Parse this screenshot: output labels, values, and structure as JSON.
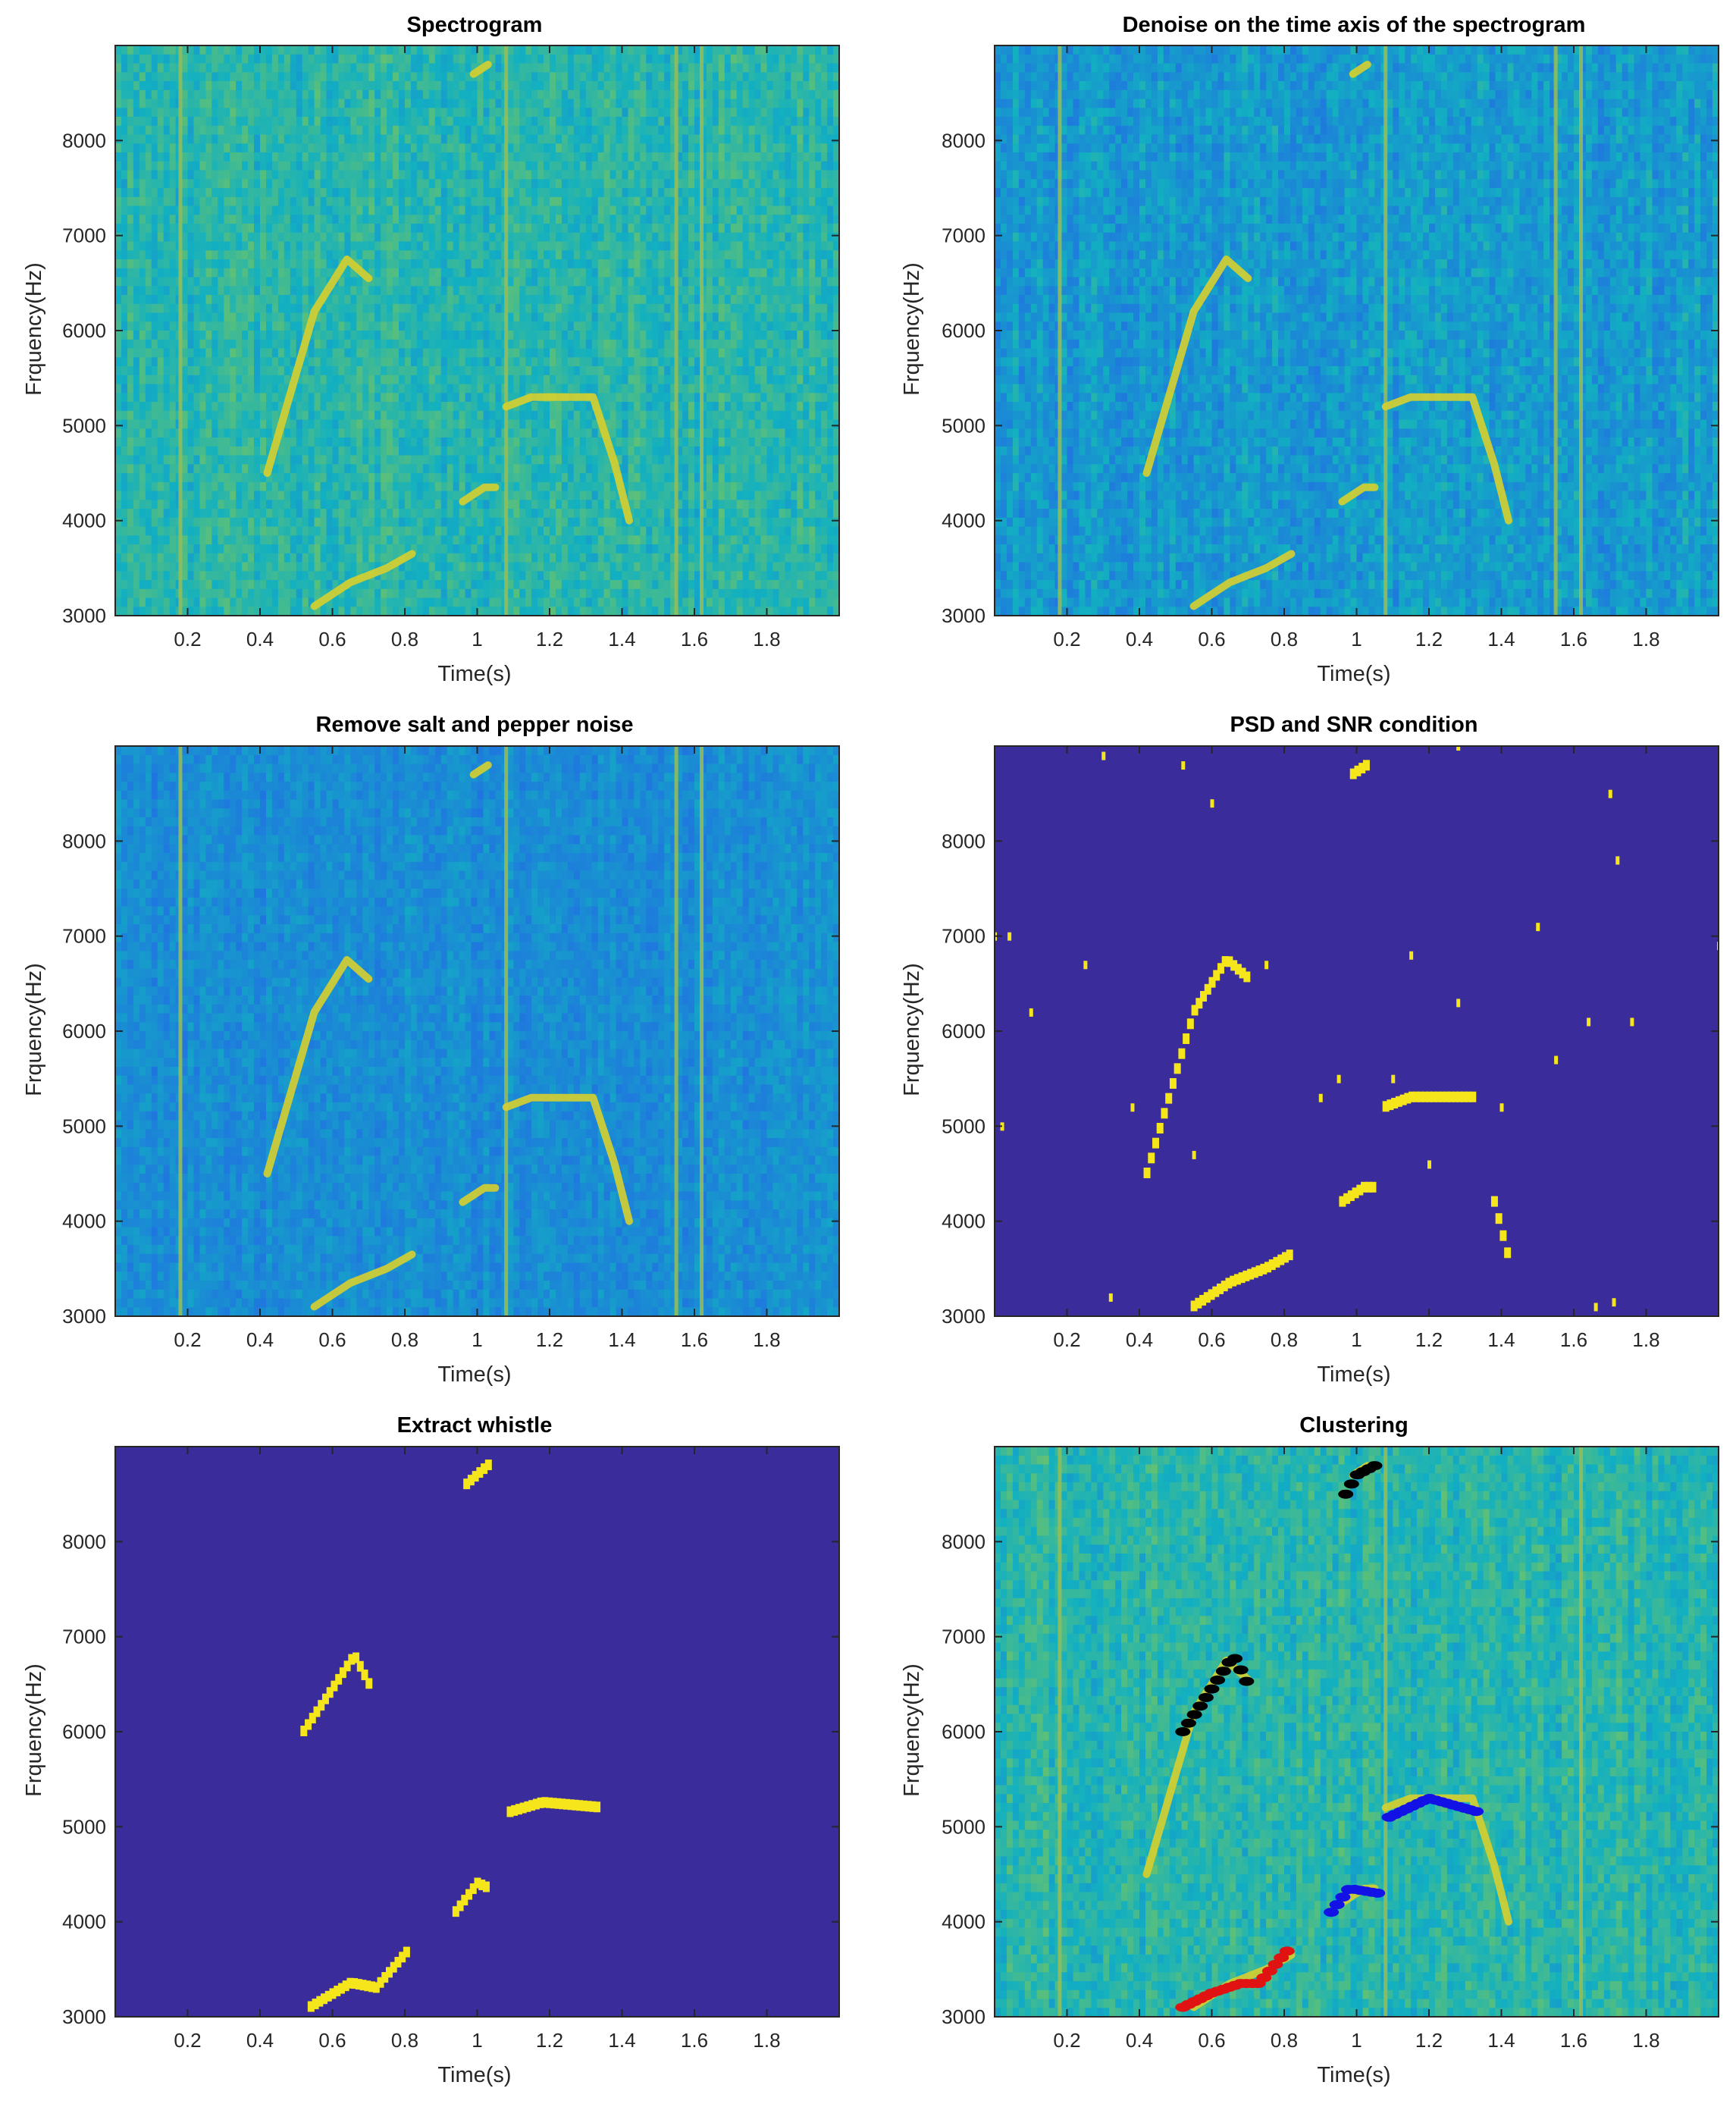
{
  "chart_data": [
    {
      "type": "heatmap",
      "title": "Spectrogram",
      "xlabel": "Time(s)",
      "ylabel": "Frquency(Hz)",
      "xlim": [
        0,
        2.0
      ],
      "ylim": [
        3000,
        9000
      ],
      "xticks": [
        "0.2",
        "0.4",
        "0.6",
        "0.8",
        "1",
        "1.2",
        "1.4",
        "1.6",
        "1.8"
      ],
      "yticks": [
        "3000",
        "4000",
        "5000",
        "6000",
        "7000",
        "8000"
      ],
      "background": "noisy",
      "colormap": "parula",
      "whistles": [
        {
          "t": [
            0.42,
            0.55,
            0.64,
            0.7
          ],
          "f": [
            4500,
            6200,
            6750,
            6550
          ]
        },
        {
          "t": [
            0.55,
            0.65,
            0.75,
            0.82
          ],
          "f": [
            3100,
            3350,
            3500,
            3650
          ]
        },
        {
          "t": [
            0.96,
            1.02,
            1.05
          ],
          "f": [
            4200,
            4350,
            4350
          ]
        },
        {
          "t": [
            1.08,
            1.15,
            1.32,
            1.38,
            1.42
          ],
          "f": [
            5200,
            5300,
            5300,
            4600,
            4000
          ]
        },
        {
          "t": [
            0.99,
            1.03
          ],
          "f": [
            8700,
            8800
          ]
        }
      ],
      "vertical_lines": [
        0.18,
        1.08,
        1.55,
        1.62
      ]
    },
    {
      "type": "heatmap",
      "title": "Denoise on the time axis of the spectrogram",
      "xlabel": "Time(s)",
      "ylabel": "Frquency(Hz)",
      "xlim": [
        0,
        2.0
      ],
      "ylim": [
        3000,
        9000
      ],
      "xticks": [
        "0.2",
        "0.4",
        "0.6",
        "0.8",
        "1",
        "1.2",
        "1.4",
        "1.6",
        "1.8"
      ],
      "yticks": [
        "3000",
        "4000",
        "5000",
        "6000",
        "7000",
        "8000"
      ],
      "background": "denoised",
      "colormap": "parula",
      "whistles": [
        {
          "t": [
            0.42,
            0.55,
            0.64,
            0.7
          ],
          "f": [
            4500,
            6200,
            6750,
            6550
          ]
        },
        {
          "t": [
            0.55,
            0.65,
            0.75,
            0.82
          ],
          "f": [
            3100,
            3350,
            3500,
            3650
          ]
        },
        {
          "t": [
            0.96,
            1.02,
            1.05
          ],
          "f": [
            4200,
            4350,
            4350
          ]
        },
        {
          "t": [
            1.08,
            1.15,
            1.32,
            1.38,
            1.42
          ],
          "f": [
            5200,
            5300,
            5300,
            4600,
            4000
          ]
        },
        {
          "t": [
            0.99,
            1.03
          ],
          "f": [
            8700,
            8800
          ]
        }
      ],
      "vertical_lines": [
        0.18,
        1.08,
        1.55,
        1.62
      ]
    },
    {
      "type": "heatmap",
      "title": "Remove salt and pepper noise",
      "xlabel": "Time(s)",
      "ylabel": "Frquency(Hz)",
      "xlim": [
        0,
        2.0
      ],
      "ylim": [
        3000,
        9000
      ],
      "xticks": [
        "0.2",
        "0.4",
        "0.6",
        "0.8",
        "1",
        "1.2",
        "1.4",
        "1.6",
        "1.8"
      ],
      "yticks": [
        "3000",
        "4000",
        "5000",
        "6000",
        "7000",
        "8000"
      ],
      "background": "smoothed",
      "colormap": "parula",
      "whistles": [
        {
          "t": [
            0.42,
            0.55,
            0.64,
            0.7
          ],
          "f": [
            4500,
            6200,
            6750,
            6550
          ]
        },
        {
          "t": [
            0.55,
            0.65,
            0.75,
            0.82
          ],
          "f": [
            3100,
            3350,
            3500,
            3650
          ]
        },
        {
          "t": [
            0.96,
            1.02,
            1.05
          ],
          "f": [
            4200,
            4350,
            4350
          ]
        },
        {
          "t": [
            1.08,
            1.15,
            1.32,
            1.38,
            1.42
          ],
          "f": [
            5200,
            5300,
            5300,
            4600,
            4000
          ]
        },
        {
          "t": [
            0.99,
            1.03
          ],
          "f": [
            8700,
            8800
          ]
        }
      ],
      "vertical_lines": [
        0.18,
        1.08,
        1.55,
        1.62
      ]
    },
    {
      "type": "heatmap",
      "title": "PSD and SNR condition",
      "xlabel": "Time(s)",
      "ylabel": "Frquency(Hz)",
      "xlim": [
        0,
        2.0
      ],
      "ylim": [
        3000,
        9000
      ],
      "xticks": [
        "0.2",
        "0.4",
        "0.6",
        "0.8",
        "1",
        "1.2",
        "1.4",
        "1.6",
        "1.8"
      ],
      "yticks": [
        "3000",
        "4000",
        "5000",
        "6000",
        "7000",
        "8000"
      ],
      "background": "binary",
      "colormap": "binary",
      "whistles": [
        {
          "t": [
            0.42,
            0.55,
            0.64,
            0.7
          ],
          "f": [
            4500,
            6200,
            6750,
            6550
          ]
        },
        {
          "t": [
            0.55,
            0.65,
            0.75,
            0.82
          ],
          "f": [
            3100,
            3350,
            3500,
            3650
          ]
        },
        {
          "t": [
            0.96,
            1.02,
            1.05
          ],
          "f": [
            4200,
            4350,
            4350
          ]
        },
        {
          "t": [
            1.08,
            1.15,
            1.32
          ],
          "f": [
            5200,
            5300,
            5300
          ]
        },
        {
          "t": [
            1.38,
            1.42
          ],
          "f": [
            4200,
            3600
          ]
        },
        {
          "t": [
            0.99,
            1.03
          ],
          "f": [
            8700,
            8800
          ]
        }
      ],
      "isolated_points": [
        [
          0.04,
          7000
        ],
        [
          0.1,
          6200
        ],
        [
          0.25,
          6700
        ],
        [
          0.3,
          8900
        ],
        [
          0.32,
          3200
        ],
        [
          0.38,
          5200
        ],
        [
          0.55,
          4700
        ],
        [
          0.6,
          8400
        ],
        [
          0.75,
          6700
        ],
        [
          0.9,
          5300
        ],
        [
          0.95,
          5500
        ],
        [
          1.1,
          5500
        ],
        [
          1.15,
          6800
        ],
        [
          1.2,
          4600
        ],
        [
          1.28,
          6300
        ],
        [
          1.4,
          5200
        ],
        [
          1.5,
          7100
        ],
        [
          1.55,
          5700
        ],
        [
          1.64,
          6100
        ],
        [
          1.7,
          8500
        ],
        [
          1.72,
          7800
        ],
        [
          1.76,
          6100
        ],
        [
          1.66,
          3100
        ],
        [
          1.71,
          3150
        ],
        [
          0.02,
          5000
        ],
        [
          0.0,
          7000
        ],
        [
          2.0,
          6900
        ],
        [
          0.52,
          8800
        ],
        [
          1.28,
          9000
        ]
      ]
    },
    {
      "type": "heatmap",
      "title": "Extract whistle",
      "xlabel": "Time(s)",
      "ylabel": "Frquency(Hz)",
      "xlim": [
        0,
        2.0
      ],
      "ylim": [
        3000,
        9000
      ],
      "xticks": [
        "0.2",
        "0.4",
        "0.6",
        "0.8",
        "1",
        "1.2",
        "1.4",
        "1.6",
        "1.8"
      ],
      "yticks": [
        "3000",
        "4000",
        "5000",
        "6000",
        "7000",
        "8000"
      ],
      "background": "binary",
      "colormap": "binary",
      "whistles": [
        {
          "t": [
            0.52,
            0.6,
            0.66,
            0.7
          ],
          "f": [
            6000,
            6450,
            6800,
            6500
          ]
        },
        {
          "t": [
            0.54,
            0.65,
            0.72,
            0.81
          ],
          "f": [
            3100,
            3350,
            3300,
            3700
          ]
        },
        {
          "t": [
            0.94,
            1.0,
            1.03
          ],
          "f": [
            4100,
            4400,
            4350
          ]
        },
        {
          "t": [
            1.09,
            1.18,
            1.33
          ],
          "f": [
            5150,
            5250,
            5200
          ]
        },
        {
          "t": [
            0.97,
            1.03
          ],
          "f": [
            8600,
            8800
          ]
        }
      ]
    },
    {
      "type": "scatter",
      "title": "Clustering",
      "xlabel": "Time(s)",
      "ylabel": "Frquency(Hz)",
      "xlim": [
        0,
        2.0
      ],
      "ylim": [
        3000,
        9000
      ],
      "xticks": [
        "0.2",
        "0.4",
        "0.6",
        "0.8",
        "1",
        "1.2",
        "1.4",
        "1.6",
        "1.8"
      ],
      "yticks": [
        "3000",
        "4000",
        "5000",
        "6000",
        "7000",
        "8000"
      ],
      "background": "noisy",
      "colormap": "parula",
      "whistles": [
        {
          "t": [
            0.42,
            0.55,
            0.64,
            0.7
          ],
          "f": [
            4500,
            6200,
            6750,
            6550
          ]
        },
        {
          "t": [
            0.55,
            0.65,
            0.75,
            0.82
          ],
          "f": [
            3100,
            3350,
            3500,
            3650
          ]
        },
        {
          "t": [
            0.96,
            1.02,
            1.05
          ],
          "f": [
            4200,
            4350,
            4350
          ]
        },
        {
          "t": [
            1.08,
            1.15,
            1.32,
            1.38,
            1.42
          ],
          "f": [
            5200,
            5300,
            5300,
            4600,
            4000
          ]
        },
        {
          "t": [
            0.99,
            1.03
          ],
          "f": [
            8700,
            8800
          ]
        }
      ],
      "vertical_lines": [
        0.18,
        1.08,
        1.62
      ],
      "clusters": [
        {
          "color": "#000000",
          "segments": [
            {
              "t": [
                0.52,
                0.6,
                0.66,
                0.7
              ],
              "f": [
                6000,
                6450,
                6800,
                6500
              ]
            },
            {
              "t": [
                0.97,
                1.0,
                1.05
              ],
              "f": [
                8500,
                8700,
                8800
              ]
            }
          ]
        },
        {
          "color": "#e11212",
          "segments": [
            {
              "t": [
                0.52,
                0.6,
                0.68,
                0.73,
                0.81
              ],
              "f": [
                3100,
                3250,
                3350,
                3350,
                3700
              ]
            }
          ]
        },
        {
          "color": "#1212e6",
          "segments": [
            {
              "t": [
                0.93,
                0.98,
                1.06
              ],
              "f": [
                4100,
                4350,
                4300
              ]
            },
            {
              "t": [
                1.09,
                1.2,
                1.34
              ],
              "f": [
                5100,
                5300,
                5150
              ]
            }
          ]
        }
      ]
    }
  ],
  "colors": {
    "binary_bg": "#3a2c9a",
    "binary_fg": "#f5e51b",
    "cluster_black": "#000000",
    "cluster_red": "#e11212",
    "cluster_blue": "#1212e6"
  }
}
